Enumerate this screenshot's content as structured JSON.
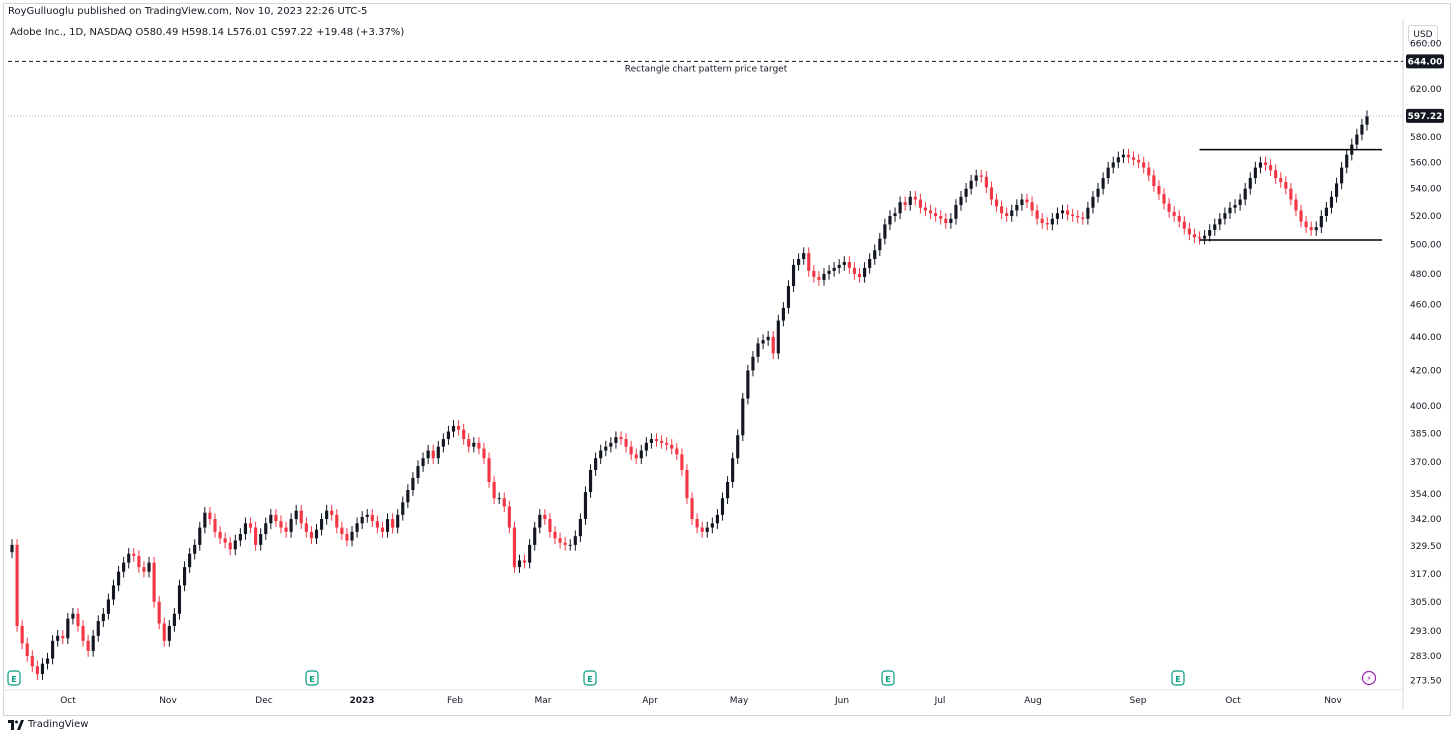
{
  "header": {
    "publisher": "RoyGulluoglu published on TradingView.com, Nov 10, 2023 22:26 UTC-5",
    "symbol_line": "Adobe Inc., 1D, NASDAQ  O580.49  H598.14  L576.01  C597.22  +19.48 (+3.37%)",
    "currency": "USD"
  },
  "footer": {
    "brand": "TradingView"
  },
  "chart_data": {
    "type": "candlestick",
    "title": "Adobe Inc., 1D, NASDAQ",
    "ohlc": {
      "open": 580.49,
      "high": 598.14,
      "low": 576.01,
      "close": 597.22,
      "change": "+19.48 (+3.37%)"
    },
    "y_scale": "log",
    "ylim": [
      270,
      680
    ],
    "y_ticks": [
      "273.50",
      "283.00",
      "293.00",
      "305.00",
      "317.00",
      "329.50",
      "342.00",
      "354.00",
      "370.00",
      "385.00",
      "400.00",
      "420.00",
      "440.00",
      "460.00",
      "480.00",
      "500.00",
      "520.00",
      "540.00",
      "560.00",
      "580.00",
      "620.00",
      "660.00"
    ],
    "y_tick_values": [
      273.5,
      283,
      293,
      305,
      317,
      329.5,
      342,
      354,
      370,
      385,
      400,
      420,
      440,
      460,
      480,
      500,
      520,
      540,
      560,
      580,
      620,
      660
    ],
    "x_ticks": [
      "Oct",
      "Nov",
      "Dec",
      "2023",
      "Feb",
      "Mar",
      "Apr",
      "May",
      "Jun",
      "Jul",
      "Aug",
      "Sep",
      "Oct",
      "Nov"
    ],
    "price_labels": [
      {
        "value": 644.0,
        "text": "644.00"
      },
      {
        "value": 597.22,
        "text": "597.22"
      }
    ],
    "annotation": "Rectangle chart pattern price target",
    "target_price": 644,
    "rectangle_pattern": {
      "resistance": 570,
      "support": 503
    },
    "earnings_marker": "E",
    "dividend_marker": "⚡",
    "closes": [
      {
        "m": "2022-09",
        "c": [
          330,
          295,
          288,
          283,
          279,
          276,
          280,
          282,
          289,
          291
        ]
      },
      {
        "m": "2022-10",
        "c": [
          290,
          298,
          300,
          295,
          289,
          285,
          291,
          297,
          300,
          306,
          312,
          318,
          322,
          326,
          325,
          320,
          318,
          322,
          305,
          296,
          289,
          295,
          300
        ]
      },
      {
        "m": "2022-11",
        "c": [
          312,
          320,
          326,
          330,
          338,
          345,
          342,
          336,
          333,
          331,
          328,
          332,
          335,
          340,
          338,
          330,
          335,
          340,
          344,
          341,
          338
        ]
      },
      {
        "m": "2022-12",
        "c": [
          336,
          342,
          346,
          340,
          336,
          333,
          337,
          342,
          346,
          344,
          338,
          335,
          332,
          336,
          340,
          343,
          344,
          341,
          338,
          336,
          342
        ]
      },
      {
        "m": "2023-01",
        "c": [
          338,
          344,
          350,
          356,
          362,
          368,
          372,
          376,
          372,
          378,
          382,
          386,
          389,
          387,
          382,
          378,
          380,
          377,
          372,
          360,
          352
        ]
      },
      {
        "m": "2023-02",
        "c": [
          352,
          348,
          338,
          320,
          323,
          322,
          330,
          338,
          344,
          342,
          336,
          333,
          331,
          330,
          330,
          334,
          342,
          355,
          366,
          372
        ]
      },
      {
        "m": "2023-03",
        "c": [
          376,
          378,
          380,
          383,
          382,
          378,
          374,
          372,
          376,
          380,
          382,
          381,
          380,
          379,
          377,
          374,
          366,
          352,
          342,
          338,
          336,
          338,
          340
        ]
      },
      {
        "m": "2023-04",
        "c": [
          344,
          352,
          360,
          372,
          384,
          404,
          420,
          428,
          436,
          438,
          440,
          430
        ]
      },
      {
        "m": "2023-05",
        "c": [
          450,
          458,
          472,
          486,
          490,
          494,
          482,
          478,
          476,
          480,
          482,
          484,
          486,
          488,
          484,
          480,
          478,
          484,
          490,
          496,
          504,
          514,
          520
        ]
      },
      {
        "m": "2023-06",
        "c": [
          522,
          530,
          528,
          534,
          532,
          526,
          524,
          522,
          520,
          518,
          515,
          518,
          528,
          534,
          540,
          546,
          550,
          549,
          541,
          532,
          527,
          522,
          520
        ]
      },
      {
        "m": "2023-07",
        "c": [
          524,
          528,
          532,
          530,
          524,
          518,
          515,
          514,
          518,
          522,
          524,
          521,
          520,
          519,
          518,
          526,
          534,
          540,
          548,
          556,
          560,
          564
        ]
      },
      {
        "m": "2023-08",
        "c": [
          566,
          564,
          562,
          560,
          556,
          550,
          542,
          536,
          529,
          523,
          520,
          516,
          511,
          507,
          505,
          504,
          506,
          510,
          514,
          518,
          522,
          526,
          528
        ]
      },
      {
        "m": "2023-09",
        "c": [
          532,
          540,
          548,
          556,
          560,
          558,
          554,
          548,
          545,
          540,
          532,
          524,
          516,
          512,
          510,
          512,
          520,
          526,
          534,
          544,
          556,
          566,
          574,
          582,
          590,
          597
        ]
      }
    ]
  }
}
